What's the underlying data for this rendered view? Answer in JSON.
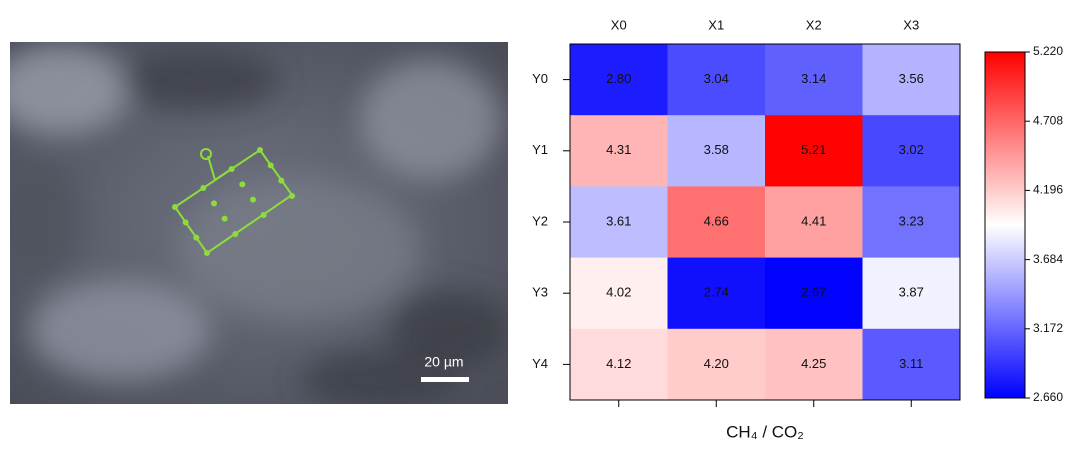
{
  "image": {
    "scale_label": "20 µm"
  },
  "chart_data": {
    "type": "heatmap",
    "x_categories": [
      "X0",
      "X1",
      "X2",
      "X3"
    ],
    "y_categories": [
      "Y0",
      "Y1",
      "Y2",
      "Y3",
      "Y4"
    ],
    "z": [
      [
        2.8,
        3.04,
        3.14,
        3.56
      ],
      [
        4.31,
        3.58,
        5.21,
        3.02
      ],
      [
        3.61,
        4.66,
        4.41,
        3.23
      ],
      [
        4.02,
        2.74,
        2.67,
        3.87
      ],
      [
        4.12,
        4.2,
        4.25,
        3.11
      ]
    ],
    "value_labels": [
      [
        "2.80",
        "3.04",
        "3.14",
        "3.56"
      ],
      [
        "4.31",
        "3.58",
        "5.21",
        "3.02"
      ],
      [
        "3.61",
        "4.66",
        "4.41",
        "3.23"
      ],
      [
        "4.02",
        "2.74",
        "2.67",
        "3.87"
      ],
      [
        "4.12",
        "4.20",
        "4.25",
        "3.11"
      ]
    ],
    "xlabel": "CH₄ / CO₂",
    "colormap": [
      "#0000ff",
      "#ffffff",
      "#ff0000"
    ],
    "clim": [
      2.66,
      5.22
    ],
    "cticks": [
      {
        "value": 2.66,
        "label": "2.660"
      },
      {
        "value": 3.172,
        "label": "3.172"
      },
      {
        "value": 3.684,
        "label": "3.684"
      },
      {
        "value": 4.196,
        "label": "4.196"
      },
      {
        "value": 4.708,
        "label": "4.708"
      },
      {
        "value": 5.22,
        "label": "5.220"
      }
    ]
  }
}
